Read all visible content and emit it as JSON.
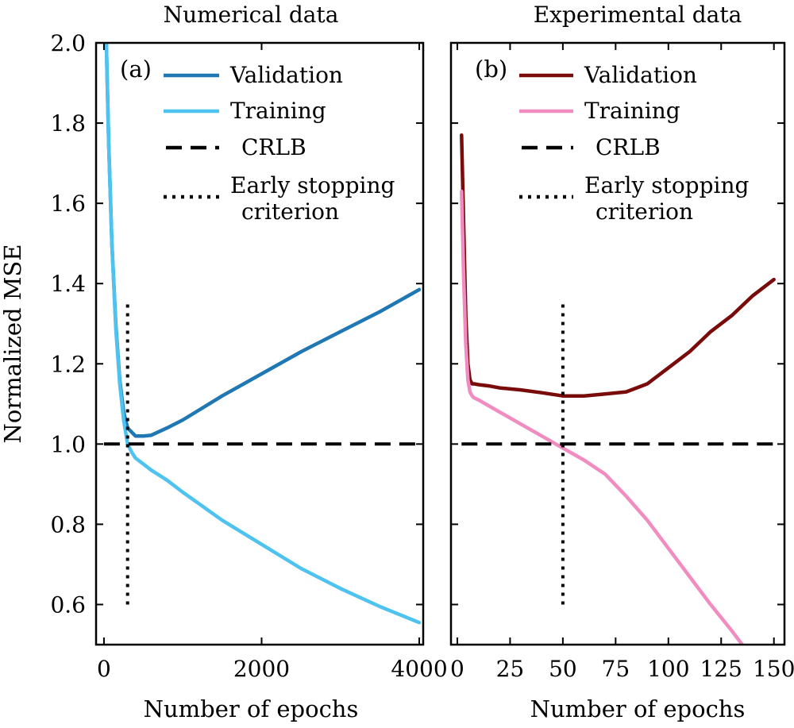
{
  "colors": {
    "validation_a": "#1f78b4",
    "training_a": "#4fc3f0",
    "validation_b": "#7a0b0b",
    "training_b": "#f08cc0",
    "reference": "#000000"
  },
  "figure": {
    "ylabel": "Normalized MSE",
    "yticks": [
      "0.6",
      "0.8",
      "1.0",
      "1.2",
      "1.4",
      "1.6",
      "1.8",
      "2.0"
    ]
  },
  "chart_data": [
    {
      "type": "line",
      "panel_label": "(a)",
      "title": "Numerical data",
      "xlabel": "Number of epochs",
      "ylabel": "Normalized MSE",
      "xlim": [
        -100,
        4050
      ],
      "ylim": [
        0.5,
        2.0
      ],
      "xticks": [
        0,
        2000,
        4000
      ],
      "xtick_labels": [
        "0",
        "2000",
        "4000"
      ],
      "yticks": [
        0.6,
        0.8,
        1.0,
        1.2,
        1.4,
        1.6,
        1.8,
        2.0
      ],
      "legend_position": "top-right",
      "legend": [
        "Validation",
        "Training",
        "CRLB",
        "Early stopping criterion"
      ],
      "legend_lines": [
        [
          "Validation"
        ],
        [
          "Training"
        ],
        [
          "CRLB"
        ],
        [
          "Early stopping",
          "criterion"
        ]
      ],
      "series": [
        {
          "name": "Validation",
          "style": "solid",
          "x": [
            30,
            60,
            100,
            150,
            200,
            250,
            300,
            350,
            400,
            500,
            600,
            800,
            1000,
            1500,
            2000,
            2500,
            3000,
            3500,
            4000
          ],
          "y": [
            2.0,
            1.75,
            1.5,
            1.3,
            1.16,
            1.08,
            1.04,
            1.03,
            1.02,
            1.02,
            1.022,
            1.04,
            1.06,
            1.12,
            1.175,
            1.23,
            1.28,
            1.33,
            1.385
          ]
        },
        {
          "name": "Training",
          "style": "solid",
          "x": [
            30,
            60,
            100,
            150,
            200,
            250,
            300,
            350,
            400,
            500,
            600,
            800,
            1000,
            1500,
            2000,
            2500,
            3000,
            3500,
            4000
          ],
          "y": [
            2.0,
            1.75,
            1.5,
            1.29,
            1.15,
            1.06,
            1.0,
            0.98,
            0.965,
            0.95,
            0.935,
            0.91,
            0.88,
            0.81,
            0.75,
            0.69,
            0.64,
            0.595,
            0.555
          ]
        },
        {
          "name": "CRLB",
          "style": "dashed",
          "x": [
            0,
            4000
          ],
          "y": [
            1.0,
            1.0
          ]
        },
        {
          "name": "Early stopping criterion",
          "style": "dotted",
          "x": [
            300,
            300
          ],
          "y": [
            0.6,
            1.35
          ]
        }
      ]
    },
    {
      "type": "line",
      "panel_label": "(b)",
      "title": "Experimental data",
      "xlabel": "Number of epochs",
      "ylabel": "Normalized MSE",
      "xlim": [
        -3,
        155
      ],
      "ylim": [
        0.5,
        2.0
      ],
      "xticks": [
        0,
        25,
        50,
        75,
        100,
        125,
        150
      ],
      "xtick_labels": [
        "0",
        "25",
        "50",
        "75",
        "100",
        "125",
        "150"
      ],
      "yticks": [
        0.6,
        0.8,
        1.0,
        1.2,
        1.4,
        1.6,
        1.8,
        2.0
      ],
      "legend_position": "top-right",
      "legend": [
        "Validation",
        "Training",
        "CRLB",
        "Early stopping criterion"
      ],
      "legend_lines": [
        [
          "Validation"
        ],
        [
          "Training"
        ],
        [
          "CRLB"
        ],
        [
          "Early stopping",
          "criterion"
        ]
      ],
      "series": [
        {
          "name": "Validation",
          "style": "solid",
          "x": [
            2,
            3,
            4,
            5,
            6,
            7,
            8,
            10,
            15,
            20,
            30,
            40,
            50,
            60,
            70,
            80,
            90,
            100,
            110,
            120,
            130,
            140,
            150
          ],
          "y": [
            1.77,
            1.55,
            1.32,
            1.2,
            1.16,
            1.15,
            1.15,
            1.148,
            1.145,
            1.14,
            1.135,
            1.128,
            1.12,
            1.12,
            1.125,
            1.13,
            1.15,
            1.19,
            1.23,
            1.28,
            1.32,
            1.37,
            1.41
          ]
        },
        {
          "name": "Training",
          "style": "solid",
          "x": [
            2,
            3,
            4,
            5,
            6,
            7,
            8,
            10,
            15,
            20,
            30,
            40,
            50,
            60,
            70,
            80,
            90,
            100,
            110,
            120,
            130,
            135
          ],
          "y": [
            1.63,
            1.42,
            1.25,
            1.16,
            1.13,
            1.12,
            1.115,
            1.11,
            1.095,
            1.08,
            1.05,
            1.02,
            0.99,
            0.96,
            0.925,
            0.87,
            0.81,
            0.74,
            0.67,
            0.6,
            0.535,
            0.5
          ]
        },
        {
          "name": "CRLB",
          "style": "dashed",
          "x": [
            2,
            150
          ],
          "y": [
            1.0,
            1.0
          ]
        },
        {
          "name": "Early stopping criterion",
          "style": "dotted",
          "x": [
            50,
            50
          ],
          "y": [
            0.6,
            1.35
          ]
        }
      ]
    }
  ]
}
